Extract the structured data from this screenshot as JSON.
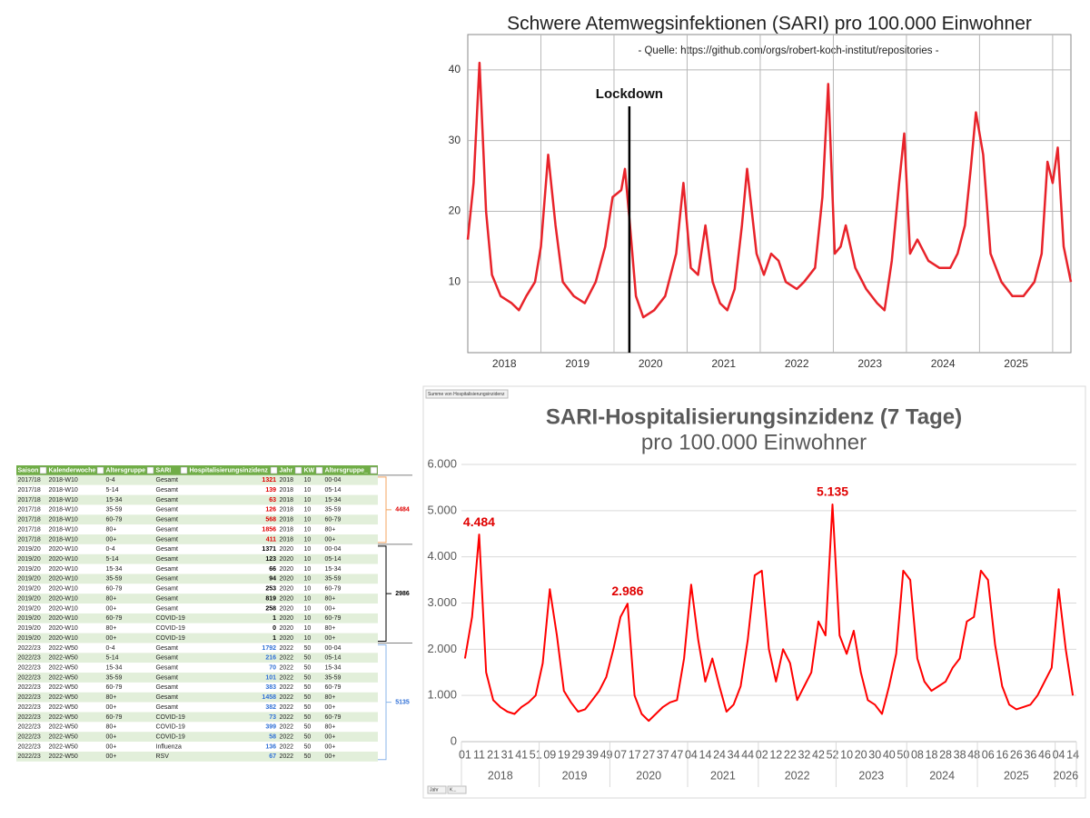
{
  "chart_data": [
    {
      "type": "line",
      "title": "Schwere Atemwegsinfektionen (SARI) pro 100.000 Einwohner",
      "subtitle": "- Quelle: https://github.com/orgs/robert-koch-institut/repositories -",
      "x": [
        2018.0,
        2018.08,
        2018.16,
        2018.25,
        2018.33,
        2018.45,
        2018.6,
        2018.7,
        2018.8,
        2018.92,
        2019.0,
        2019.1,
        2019.2,
        2019.3,
        2019.45,
        2019.6,
        2019.75,
        2019.88,
        2019.98,
        2020.1,
        2020.15,
        2020.21,
        2020.3,
        2020.4,
        2020.55,
        2020.7,
        2020.85,
        2020.95,
        2021.05,
        2021.15,
        2021.25,
        2021.35,
        2021.45,
        2021.55,
        2021.65,
        2021.75,
        2021.82,
        2021.95,
        2022.05,
        2022.15,
        2022.25,
        2022.35,
        2022.5,
        2022.6,
        2022.75,
        2022.85,
        2022.93,
        2023.02,
        2023.1,
        2023.17,
        2023.3,
        2023.45,
        2023.6,
        2023.7,
        2023.8,
        2023.9,
        2023.97,
        2024.05,
        2024.15,
        2024.3,
        2024.45,
        2024.6,
        2024.7,
        2024.8,
        2024.88,
        2024.95,
        2025.05,
        2025.15,
        2025.3,
        2025.45,
        2025.6,
        2025.75,
        2025.85,
        2025.93,
        2026.0,
        2026.07,
        2026.15,
        2026.25
      ],
      "values": [
        16,
        24,
        41,
        20,
        11,
        8,
        7,
        6,
        8,
        10,
        15,
        28,
        18,
        10,
        8,
        7,
        10,
        15,
        22,
        23,
        26,
        19,
        8,
        5,
        6,
        8,
        14,
        24,
        12,
        11,
        18,
        10,
        7,
        6,
        9,
        18,
        26,
        14,
        11,
        14,
        13,
        10,
        9,
        10,
        12,
        22,
        38,
        14,
        15,
        18,
        12,
        9,
        7,
        6,
        13,
        24,
        31,
        14,
        16,
        13,
        12,
        12,
        14,
        18,
        26,
        34,
        28,
        14,
        10,
        8,
        8,
        10,
        14,
        27,
        24,
        29,
        15,
        10
      ],
      "color": "#e8232a",
      "xlim": [
        2018,
        2026.25
      ],
      "ylim": [
        0,
        45
      ],
      "yticks": [
        10,
        20,
        30,
        40
      ],
      "xticks": [
        {
          "value": 2018.5,
          "label": "2018"
        },
        {
          "value": 2019.5,
          "label": "2019"
        },
        {
          "value": 2020.5,
          "label": "2020"
        },
        {
          "value": 2021.5,
          "label": "2021"
        },
        {
          "value": 2022.5,
          "label": "2022"
        },
        {
          "value": 2023.5,
          "label": "2023"
        },
        {
          "value": 2024.5,
          "label": "2024"
        },
        {
          "value": 2025.5,
          "label": "2025"
        }
      ],
      "xgrid": [
        2019,
        2020,
        2021,
        2022,
        2023,
        2024,
        2025,
        2026
      ],
      "grid": true,
      "annotations": [
        {
          "text": "Lockdown",
          "x": 2020.21
        }
      ]
    },
    {
      "type": "line",
      "title": "SARI-Hospitalisierungsinzidenz (7 Tage)",
      "subtitle": "pro 100.000 Einwohner",
      "field_button": "Summe von Hospitalisierungsinzidenz",
      "filter_buttons": [
        "Jahr",
        "K..."
      ],
      "category_groups": [
        {
          "label": "2018",
          "categories": [
            "01",
            null,
            "11",
            null,
            "21",
            null,
            "31",
            null,
            "41",
            null,
            "51"
          ]
        },
        {
          "label": "2019",
          "categories": [
            null,
            "09",
            null,
            "19",
            null,
            "29",
            null,
            "39",
            null,
            "49"
          ]
        },
        {
          "label": "2020",
          "categories": [
            null,
            "07",
            null,
            "17",
            null,
            "27",
            null,
            "37",
            null,
            "47",
            null
          ]
        },
        {
          "label": "2021",
          "categories": [
            "04",
            null,
            "14",
            null,
            "24",
            null,
            "34",
            null,
            "44",
            null
          ]
        },
        {
          "label": "2022",
          "categories": [
            "02",
            null,
            "12",
            null,
            "22",
            null,
            "32",
            null,
            "42",
            null,
            "52"
          ]
        },
        {
          "label": "2023",
          "categories": [
            null,
            "10",
            null,
            "20",
            null,
            "30",
            null,
            "40",
            null,
            "50"
          ]
        },
        {
          "label": "2024",
          "categories": [
            null,
            "08",
            null,
            "18",
            null,
            "28",
            null,
            "38",
            null,
            "48"
          ]
        },
        {
          "label": "2025",
          "categories": [
            null,
            "06",
            null,
            "16",
            null,
            "26",
            null,
            "36",
            null,
            "46",
            null
          ]
        },
        {
          "label": "2026",
          "categories": [
            "04",
            null,
            "14"
          ]
        }
      ],
      "values": [
        1800,
        2700,
        4484,
        1500,
        900,
        750,
        650,
        600,
        750,
        850,
        1000,
        1700,
        3300,
        2300,
        1100,
        850,
        650,
        700,
        900,
        1100,
        1400,
        2000,
        2700,
        2986,
        1000,
        600,
        450,
        600,
        750,
        850,
        900,
        1800,
        3400,
        2200,
        1300,
        1800,
        1200,
        650,
        800,
        1200,
        2200,
        3600,
        3700,
        2000,
        1300,
        2000,
        1700,
        900,
        1200,
        1500,
        2600,
        2300,
        5135,
        2300,
        1900,
        2400,
        1500,
        900,
        800,
        600,
        1200,
        1900,
        3700,
        3500,
        1800,
        1300,
        1100,
        1200,
        1300,
        1600,
        1800,
        2600,
        2700,
        3700,
        3500,
        2100,
        1200,
        800,
        700,
        750,
        800,
        1000,
        1300,
        1600,
        3300,
        2000,
        1000
      ],
      "value_labels": [
        null,
        null,
        "4.484",
        null,
        null,
        null,
        null,
        null,
        null,
        null,
        null,
        null,
        null,
        null,
        null,
        null,
        null,
        null,
        null,
        null,
        null,
        null,
        null,
        "2.986",
        null,
        null,
        null,
        null,
        null,
        null,
        null,
        null,
        null,
        null,
        null,
        null,
        null,
        null,
        null,
        null,
        null,
        null,
        null,
        null,
        null,
        null,
        null,
        null,
        null,
        null,
        null,
        null,
        "5.135",
        null,
        null,
        null,
        null,
        null,
        null,
        null,
        null,
        null,
        null,
        null,
        null,
        null,
        null,
        null,
        null,
        null,
        null,
        null,
        null,
        null,
        null,
        null,
        null,
        null,
        null,
        null,
        null,
        null,
        null,
        null,
        null,
        null,
        null
      ],
      "color": "#ff0000",
      "label_color": "#e00000",
      "ylim": [
        0,
        6000
      ],
      "yticks": [
        0,
        {
          "value": 1000,
          "label": "1.000"
        },
        {
          "value": 2000,
          "label": "2.000"
        },
        {
          "value": 3000,
          "label": "3.000"
        },
        {
          "value": 4000,
          "label": "4.000"
        },
        {
          "value": 5000,
          "label": "5.000"
        },
        {
          "value": 6000,
          "label": "6.000"
        }
      ],
      "grid": true
    }
  ],
  "table": {
    "columns": [
      "Saison",
      "Kalenderwoche",
      "Altersgruppe",
      "SARI",
      "Hospitalisierungsinzidenz",
      "Jahr",
      "KW",
      "Altersgruppe_"
    ],
    "value_colors": {
      "2017/18": "#e00000",
      "2019/20": "#000000",
      "2022/23": "#2f6fd6"
    },
    "rows": [
      [
        "2017/18",
        "2018-W10",
        "0-4",
        "Gesamt",
        1321,
        2018,
        10,
        "00-04"
      ],
      [
        "2017/18",
        "2018-W10",
        "5-14",
        "Gesamt",
        139,
        2018,
        10,
        "05-14"
      ],
      [
        "2017/18",
        "2018-W10",
        "15-34",
        "Gesamt",
        63,
        2018,
        10,
        "15-34"
      ],
      [
        "2017/18",
        "2018-W10",
        "35-59",
        "Gesamt",
        126,
        2018,
        10,
        "35-59"
      ],
      [
        "2017/18",
        "2018-W10",
        "60-79",
        "Gesamt",
        568,
        2018,
        10,
        "60-79"
      ],
      [
        "2017/18",
        "2018-W10",
        "80+",
        "Gesamt",
        1856,
        2018,
        10,
        "80+"
      ],
      [
        "2017/18",
        "2018-W10",
        "00+",
        "Gesamt",
        411,
        2018,
        10,
        "00+"
      ],
      [
        "2019/20",
        "2020-W10",
        "0-4",
        "Gesamt",
        1371,
        2020,
        10,
        "00-04"
      ],
      [
        "2019/20",
        "2020-W10",
        "5-14",
        "Gesamt",
        123,
        2020,
        10,
        "05-14"
      ],
      [
        "2019/20",
        "2020-W10",
        "15-34",
        "Gesamt",
        66,
        2020,
        10,
        "15-34"
      ],
      [
        "2019/20",
        "2020-W10",
        "35-59",
        "Gesamt",
        94,
        2020,
        10,
        "35-59"
      ],
      [
        "2019/20",
        "2020-W10",
        "60-79",
        "Gesamt",
        253,
        2020,
        10,
        "60-79"
      ],
      [
        "2019/20",
        "2020-W10",
        "80+",
        "Gesamt",
        819,
        2020,
        10,
        "80+"
      ],
      [
        "2019/20",
        "2020-W10",
        "00+",
        "Gesamt",
        258,
        2020,
        10,
        "00+"
      ],
      [
        "2019/20",
        "2020-W10",
        "60-79",
        "COVID-19",
        1,
        2020,
        10,
        "60-79"
      ],
      [
        "2019/20",
        "2020-W10",
        "80+",
        "COVID-19",
        0,
        2020,
        10,
        "80+"
      ],
      [
        "2019/20",
        "2020-W10",
        "00+",
        "COVID-19",
        1,
        2020,
        10,
        "00+"
      ],
      [
        "2022/23",
        "2022-W50",
        "0-4",
        "Gesamt",
        1792,
        2022,
        50,
        "00-04"
      ],
      [
        "2022/23",
        "2022-W50",
        "5-14",
        "Gesamt",
        216,
        2022,
        50,
        "05-14"
      ],
      [
        "2022/23",
        "2022-W50",
        "15-34",
        "Gesamt",
        70,
        2022,
        50,
        "15-34"
      ],
      [
        "2022/23",
        "2022-W50",
        "35-59",
        "Gesamt",
        101,
        2022,
        50,
        "35-59"
      ],
      [
        "2022/23",
        "2022-W50",
        "60-79",
        "Gesamt",
        383,
        2022,
        50,
        "60-79"
      ],
      [
        "2022/23",
        "2022-W50",
        "80+",
        "Gesamt",
        1458,
        2022,
        50,
        "80+"
      ],
      [
        "2022/23",
        "2022-W50",
        "00+",
        "Gesamt",
        382,
        2022,
        50,
        "00+"
      ],
      [
        "2022/23",
        "2022-W50",
        "60-79",
        "COVID-19",
        73,
        2022,
        50,
        "60-79"
      ],
      [
        "2022/23",
        "2022-W50",
        "80+",
        "COVID-19",
        399,
        2022,
        50,
        "80+"
      ],
      [
        "2022/23",
        "2022-W50",
        "00+",
        "COVID-19",
        58,
        2022,
        50,
        "00+"
      ],
      [
        "2022/23",
        "2022-W50",
        "00+",
        "Influenza",
        136,
        2022,
        50,
        "00+"
      ],
      [
        "2022/23",
        "2022-W50",
        "00+",
        "RSV",
        67,
        2022,
        50,
        "00+"
      ]
    ],
    "sums": [
      {
        "value": 4484,
        "rows": [
          0,
          6
        ],
        "color": "#e00000",
        "bracket_color": "#f4a460"
      },
      {
        "value": 2986,
        "rows": [
          7,
          16
        ],
        "color": "#000000",
        "bracket_color": "#000000"
      },
      {
        "value": 5135,
        "rows": [
          17,
          28
        ],
        "color": "#2f6fd6",
        "bracket_color": "#8ab4e8"
      }
    ]
  }
}
